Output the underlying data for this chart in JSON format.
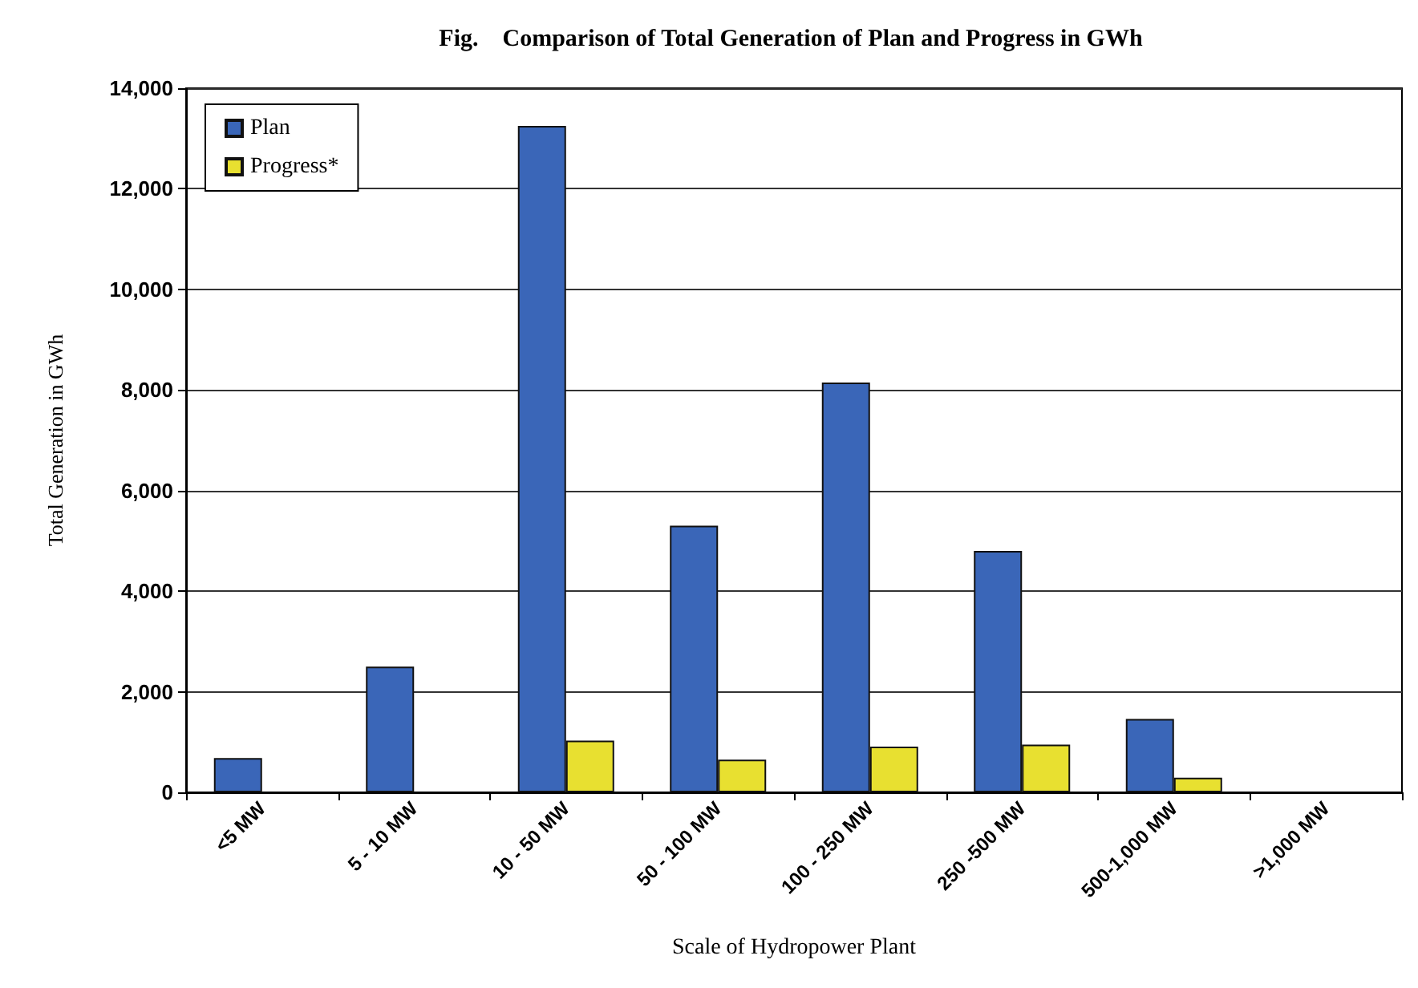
{
  "chart_data": {
    "type": "bar",
    "title": "Fig.    Comparison of Total Generation of Plan and Progress in GWh",
    "xlabel": "Scale of Hydropower Plant",
    "ylabel": "Total Generation in GWh",
    "categories": [
      "<5 MW",
      "5 - 10 MW",
      "10 - 50 MW",
      "50 - 100 MW",
      "100 - 250 MW",
      "250 -500 MW",
      "500-1,000 MW",
      ">1,000 MW"
    ],
    "series": [
      {
        "name": "Plan",
        "color": "#3a66b8",
        "values": [
          680,
          2500,
          13250,
          5300,
          8150,
          4800,
          1460,
          null
        ]
      },
      {
        "name": "Progress*",
        "color": "#e8e030",
        "values": [
          null,
          null,
          1030,
          650,
          910,
          950,
          290,
          null
        ]
      }
    ],
    "ylim": [
      0,
      14000
    ],
    "yticks": [
      {
        "value": 0,
        "label": "0"
      },
      {
        "value": 2000,
        "label": "2,000"
      },
      {
        "value": 4000,
        "label": "4,000"
      },
      {
        "value": 6000,
        "label": "6,000"
      },
      {
        "value": 8000,
        "label": "8,000"
      },
      {
        "value": 10000,
        "label": "10,000"
      },
      {
        "value": 12000,
        "label": "12,000"
      },
      {
        "value": 14000,
        "label": "14,000"
      }
    ],
    "grid": "y",
    "legend": "top left"
  }
}
